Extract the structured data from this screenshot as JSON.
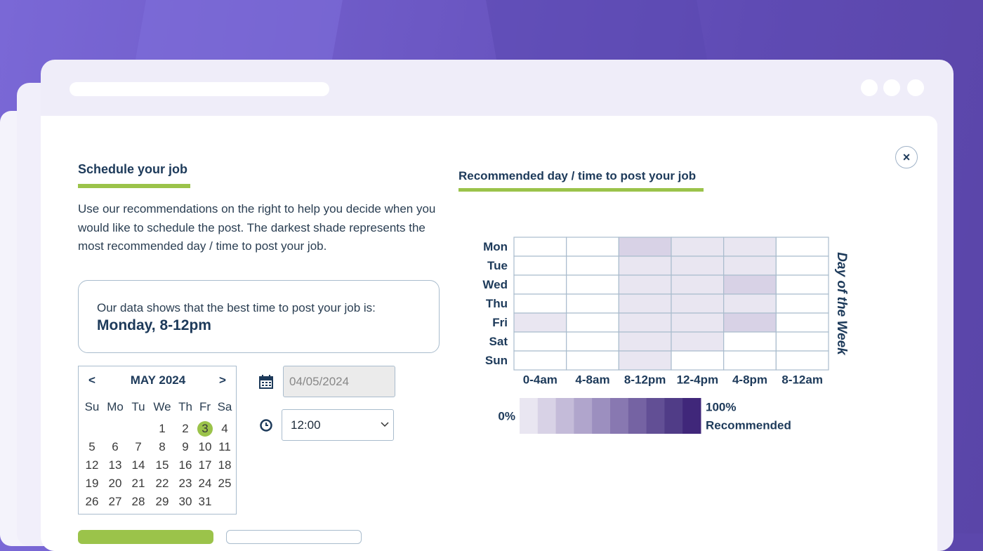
{
  "schedule": {
    "title": "Schedule your job",
    "description": "Use our recommendations on the right to help you decide when you would like to schedule the post. The darkest shade represents the most recommended day / time to post your job.",
    "best_time": {
      "intro": "Our data shows that the best time to post your job is:",
      "value": "Monday, 8-12pm"
    }
  },
  "calendar": {
    "prev": "<",
    "month": "MAY 2024",
    "next": ">",
    "weekdays": [
      "Su",
      "Mo",
      "Tu",
      "We",
      "Th",
      "Fr",
      "Sa"
    ],
    "weeks": [
      [
        null,
        null,
        null,
        1,
        2,
        3,
        4
      ],
      [
        5,
        6,
        7,
        8,
        9,
        10,
        11
      ],
      [
        12,
        13,
        14,
        15,
        16,
        17,
        18
      ],
      [
        19,
        20,
        21,
        22,
        23,
        24,
        25
      ],
      [
        26,
        27,
        28,
        29,
        30,
        31,
        null
      ]
    ],
    "selected": 3
  },
  "date_input": "04/05/2024",
  "time_select": "12:00",
  "recommendation": {
    "title": "Recommended day / time to post your job",
    "days": [
      "Mon",
      "Tue",
      "Wed",
      "Thu",
      "Fri",
      "Sat",
      "Sun"
    ],
    "time_slots": [
      "0-4am",
      "4-8am",
      "8-12pm",
      "12-4pm",
      "4-8pm",
      "8-12am"
    ],
    "axis_label": "Day of the Week",
    "levels": [
      [
        0,
        0,
        20,
        10,
        10,
        0
      ],
      [
        0,
        0,
        10,
        10,
        10,
        0
      ],
      [
        0,
        0,
        10,
        10,
        20,
        0
      ],
      [
        0,
        0,
        10,
        10,
        10,
        0
      ],
      [
        10,
        0,
        10,
        10,
        20,
        0
      ],
      [
        0,
        0,
        10,
        10,
        0,
        0
      ],
      [
        0,
        0,
        10,
        0,
        0,
        0
      ]
    ],
    "legend": {
      "min_label": "0%",
      "max_label": "100%",
      "caption": "Recommended",
      "colors": [
        "#e9e6f1",
        "#d8d2e6",
        "#c4bbd9",
        "#b0a5cc",
        "#9c8fbf",
        "#8878b1",
        "#7563a3",
        "#624f95",
        "#503c87",
        "#40277a"
      ]
    }
  }
}
